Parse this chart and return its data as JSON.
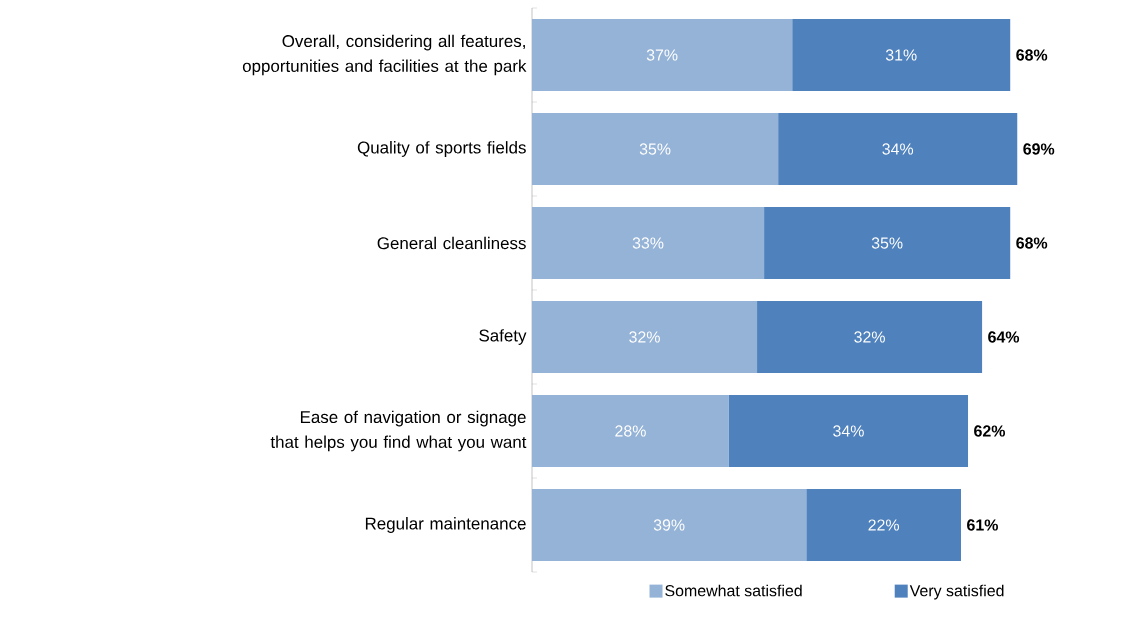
{
  "chart_data": {
    "type": "bar",
    "orientation": "horizontal",
    "stacked": true,
    "legend": "bottom",
    "categories": [
      "Overall, considering all features, opportunities and facilities at the park",
      "Quality of sports fields",
      "General cleanliness",
      "Safety",
      "Ease of navigation or signage that helps you find what you want",
      "Regular maintenance"
    ],
    "series": [
      {
        "name": "Somewhat satisfied",
        "color": "#95b3d7",
        "values": [
          37,
          35,
          33,
          32,
          28,
          39
        ],
        "value_labels": [
          "37%",
          "35%",
          "33%",
          "32%",
          "28%",
          "39%"
        ]
      },
      {
        "name": "Very satisfied",
        "color": "#4f81bd",
        "values": [
          31,
          34,
          35,
          32,
          34,
          22
        ],
        "value_labels": [
          "31%",
          "34%",
          "35%",
          "32%",
          "34%",
          "22%"
        ]
      }
    ],
    "totals": [
      "68%",
      "69%",
      "68%",
      "64%",
      "62%",
      "61%"
    ]
  }
}
